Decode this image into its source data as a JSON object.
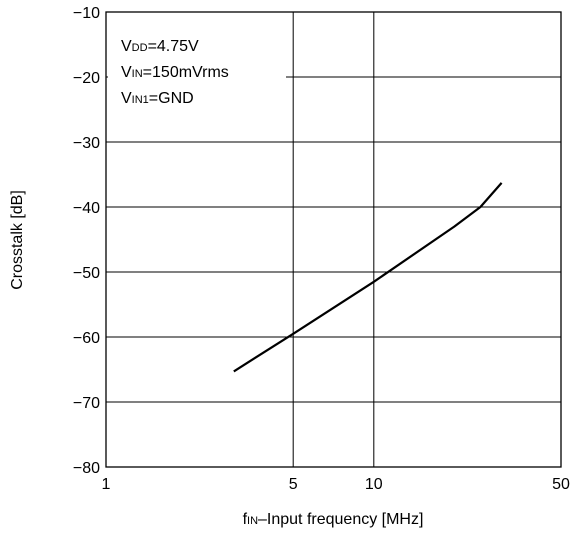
{
  "chart_data": {
    "type": "line",
    "title": "",
    "xlabel": {
      "prefix": "f",
      "sub": "IN",
      "rest": "–Input frequency [MHz]"
    },
    "ylabel": "Crosstalk [dB]",
    "xscale": "log",
    "xlim": [
      1,
      50
    ],
    "ylim": [
      -80,
      -10
    ],
    "xticks": [
      {
        "value": 1,
        "label": "1"
      },
      {
        "value": 5,
        "label": "5"
      },
      {
        "value": 10,
        "label": "10"
      },
      {
        "value": 50,
        "label": "50"
      }
    ],
    "yticks": [
      {
        "value": -10,
        "label": "−10"
      },
      {
        "value": -20,
        "label": "−20"
      },
      {
        "value": -30,
        "label": "−30"
      },
      {
        "value": -40,
        "label": "−40"
      },
      {
        "value": -50,
        "label": "−50"
      },
      {
        "value": -60,
        "label": "−60"
      },
      {
        "value": -70,
        "label": "−70"
      },
      {
        "value": -80,
        "label": "−80"
      }
    ],
    "grid": true,
    "conditions": [
      {
        "main": "V",
        "sub": "DD",
        "rest": "=4.75V"
      },
      {
        "main": "V",
        "sub": "IN",
        "rest": "=150mVrms"
      },
      {
        "main": "V",
        "sub": "IN1",
        "rest": "=GND"
      }
    ],
    "series": [
      {
        "color": "#000000",
        "x": [
          3,
          5,
          10,
          20,
          25,
          30
        ],
        "y": [
          -65.3,
          -59.5,
          -51.5,
          -43.0,
          -40.0,
          -36.3
        ]
      }
    ]
  }
}
